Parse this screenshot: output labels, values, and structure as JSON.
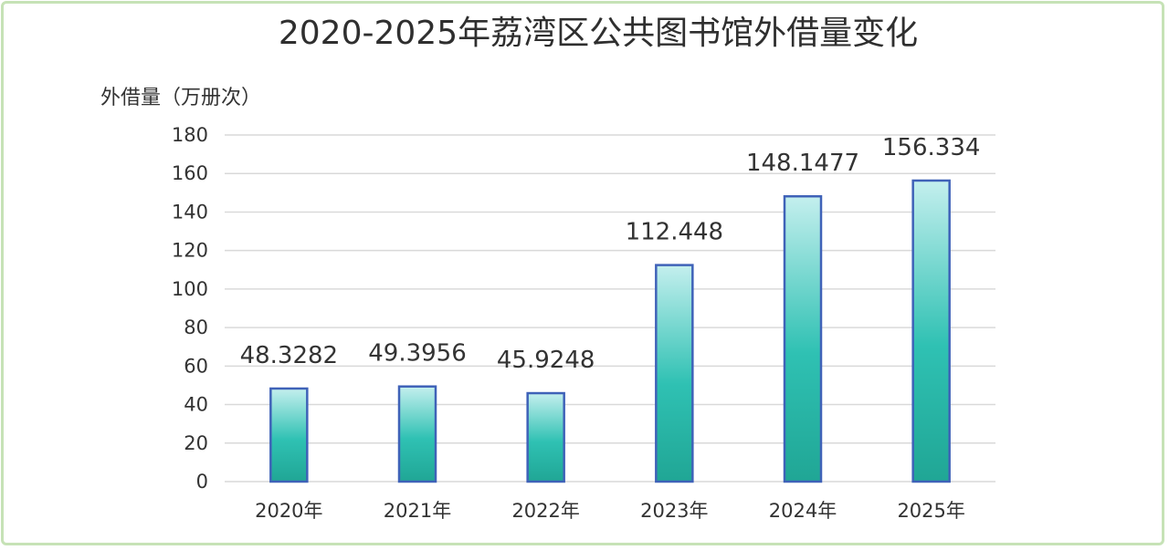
{
  "chart_data": {
    "type": "bar",
    "title": "2020-2025年荔湾区公共图书馆外借量变化",
    "ylabel": "外借量（万册次）",
    "xlabel": "",
    "categories": [
      "2020年",
      "2021年",
      "2022年",
      "2023年",
      "2024年",
      "2025年"
    ],
    "values": [
      48.3282,
      49.3956,
      45.9248,
      112.448,
      148.1477,
      156.334
    ],
    "value_labels": [
      "48.3282",
      "49.3956",
      "45.9248",
      "112.448",
      "148.1477",
      "156.334"
    ],
    "ylim": [
      0,
      180
    ],
    "yticks": [
      0,
      20,
      40,
      60,
      80,
      100,
      120,
      140,
      160,
      180
    ],
    "grid": true,
    "legend": "none",
    "colors": {
      "bar_top": "#c4efee",
      "bar_mid": "#2fc1b3",
      "bar_bottom": "#20a695",
      "bar_border": "#3f62b8",
      "frame": "#c6e2b6",
      "grid": "#d9d9d9"
    }
  }
}
